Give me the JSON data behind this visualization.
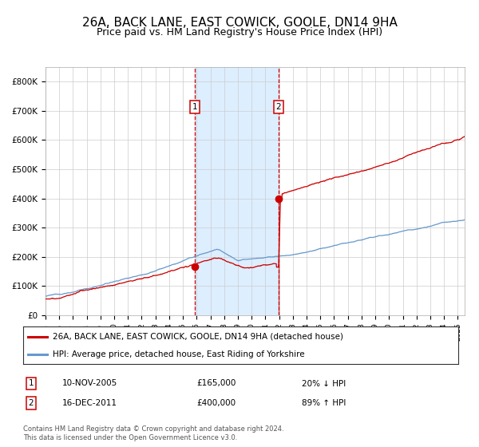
{
  "title": "26A, BACK LANE, EAST COWICK, GOOLE, DN14 9HA",
  "subtitle": "Price paid vs. HM Land Registry's House Price Index (HPI)",
  "title_fontsize": 11,
  "subtitle_fontsize": 9,
  "ylim": [
    0,
    850000
  ],
  "yticks": [
    0,
    100000,
    200000,
    300000,
    400000,
    500000,
    600000,
    700000,
    800000
  ],
  "ytick_labels": [
    "£0",
    "£100K",
    "£200K",
    "£300K",
    "£400K",
    "£500K",
    "£600K",
    "£700K",
    "£800K"
  ],
  "red_line_color": "#cc0000",
  "blue_line_color": "#6699cc",
  "marker_color": "#cc0000",
  "shading_color": "#ddeeff",
  "dashed_line_color": "#cc0000",
  "grid_color": "#cccccc",
  "background_color": "#ffffff",
  "legend_label_red": "26A, BACK LANE, EAST COWICK, GOOLE, DN14 9HA (detached house)",
  "legend_label_blue": "HPI: Average price, detached house, East Riding of Yorkshire",
  "transaction1_date": "10-NOV-2005",
  "transaction1_price": 165000,
  "transaction1_pct": "20% ↓ HPI",
  "transaction2_date": "16-DEC-2011",
  "transaction2_price": 400000,
  "transaction2_pct": "89% ↑ HPI",
  "footnote": "Contains HM Land Registry data © Crown copyright and database right 2024.\nThis data is licensed under the Open Government Licence v3.0.",
  "transaction1_x": 2005.87,
  "transaction2_x": 2011.96,
  "xmin": 1995.0,
  "xmax": 2025.5
}
